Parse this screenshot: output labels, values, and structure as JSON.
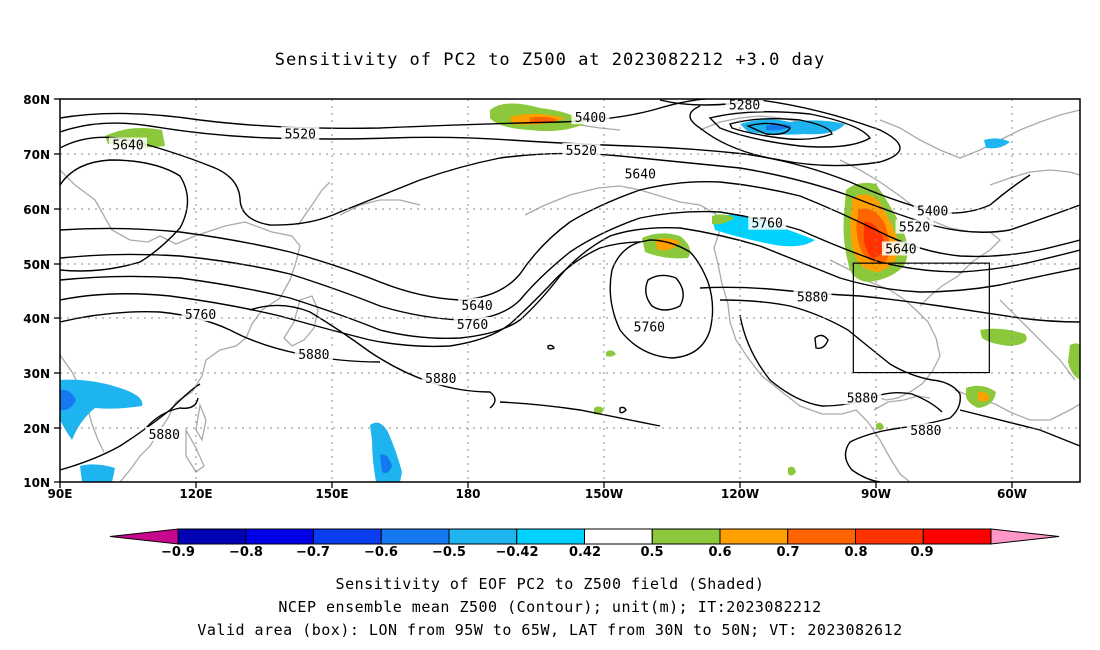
{
  "title": "Sensitivity of PC2 to Z500 at 2023082212 +3.0 day",
  "map": {
    "lat_ticks": [
      "80N",
      "70N",
      "60N",
      "50N",
      "40N",
      "30N",
      "20N",
      "10N"
    ],
    "lon_ticks": [
      "90E",
      "120E",
      "150E",
      "180",
      "150W",
      "120W",
      "90W",
      "60W"
    ],
    "contour_labels": [
      {
        "text": "5280",
        "lon": -119,
        "lat": 78.8
      },
      {
        "text": "5400",
        "lon": -153,
        "lat": 76.5
      },
      {
        "text": "5520",
        "lon": 143,
        "lat": 73.5
      },
      {
        "text": "5520",
        "lon": -155,
        "lat": 70.5
      },
      {
        "text": "5640",
        "lon": 105,
        "lat": 71.5
      },
      {
        "text": "5640",
        "lon": -142,
        "lat": 66.2
      },
      {
        "text": "5760",
        "lon": -114,
        "lat": 57.2
      },
      {
        "text": "5400",
        "lon": -77.5,
        "lat": 59.4
      },
      {
        "text": "5520",
        "lon": -81.5,
        "lat": 56.5
      },
      {
        "text": "5640",
        "lon": -84.5,
        "lat": 52.5
      },
      {
        "text": "5880",
        "lon": -104,
        "lat": 43.7
      },
      {
        "text": "5640",
        "lon": -178,
        "lat": 42.2
      },
      {
        "text": "5760",
        "lon": -179,
        "lat": 38.7
      },
      {
        "text": "5760",
        "lon": 121,
        "lat": 40.5
      },
      {
        "text": "5760",
        "lon": -140,
        "lat": 38.2
      },
      {
        "text": "5880",
        "lon": 146,
        "lat": 33.2
      },
      {
        "text": "5880",
        "lon": 174,
        "lat": 28.8
      },
      {
        "text": "5880",
        "lon": -93,
        "lat": 25.3
      },
      {
        "text": "5880",
        "lon": -79,
        "lat": 19.3
      },
      {
        "text": "5880",
        "lon": 113,
        "lat": 18.6
      }
    ]
  },
  "valid_box": {
    "lon_west": -95,
    "lon_east": -65,
    "lat_south": 30,
    "lat_north": 50
  },
  "colorbar": {
    "labels": [
      "−0.9",
      "−0.8",
      "−0.7",
      "−0.6",
      "−0.5",
      "−0.42",
      "0.42",
      "0.5",
      "0.6",
      "0.7",
      "0.8",
      "0.9"
    ],
    "colors": [
      "#c8088c",
      "#0000b4",
      "#0000e6",
      "#0a3cf0",
      "#1478f0",
      "#1eb4f0",
      "#00d2ff",
      "#ffffff",
      "#8cc83c",
      "#ffa000",
      "#ff6400",
      "#ff3200",
      "#ff0000",
      "#ff96c8"
    ]
  },
  "caption": {
    "line1": "Sensitivity of EOF PC2 to Z500 field (Shaded)",
    "line2": "NCEP ensemble mean Z500 (Contour); unit(m); IT:2023082212",
    "line3": "Valid area (box): LON from 95W to 65W, LAT from 30N to 50N; VT: 2023082612"
  }
}
